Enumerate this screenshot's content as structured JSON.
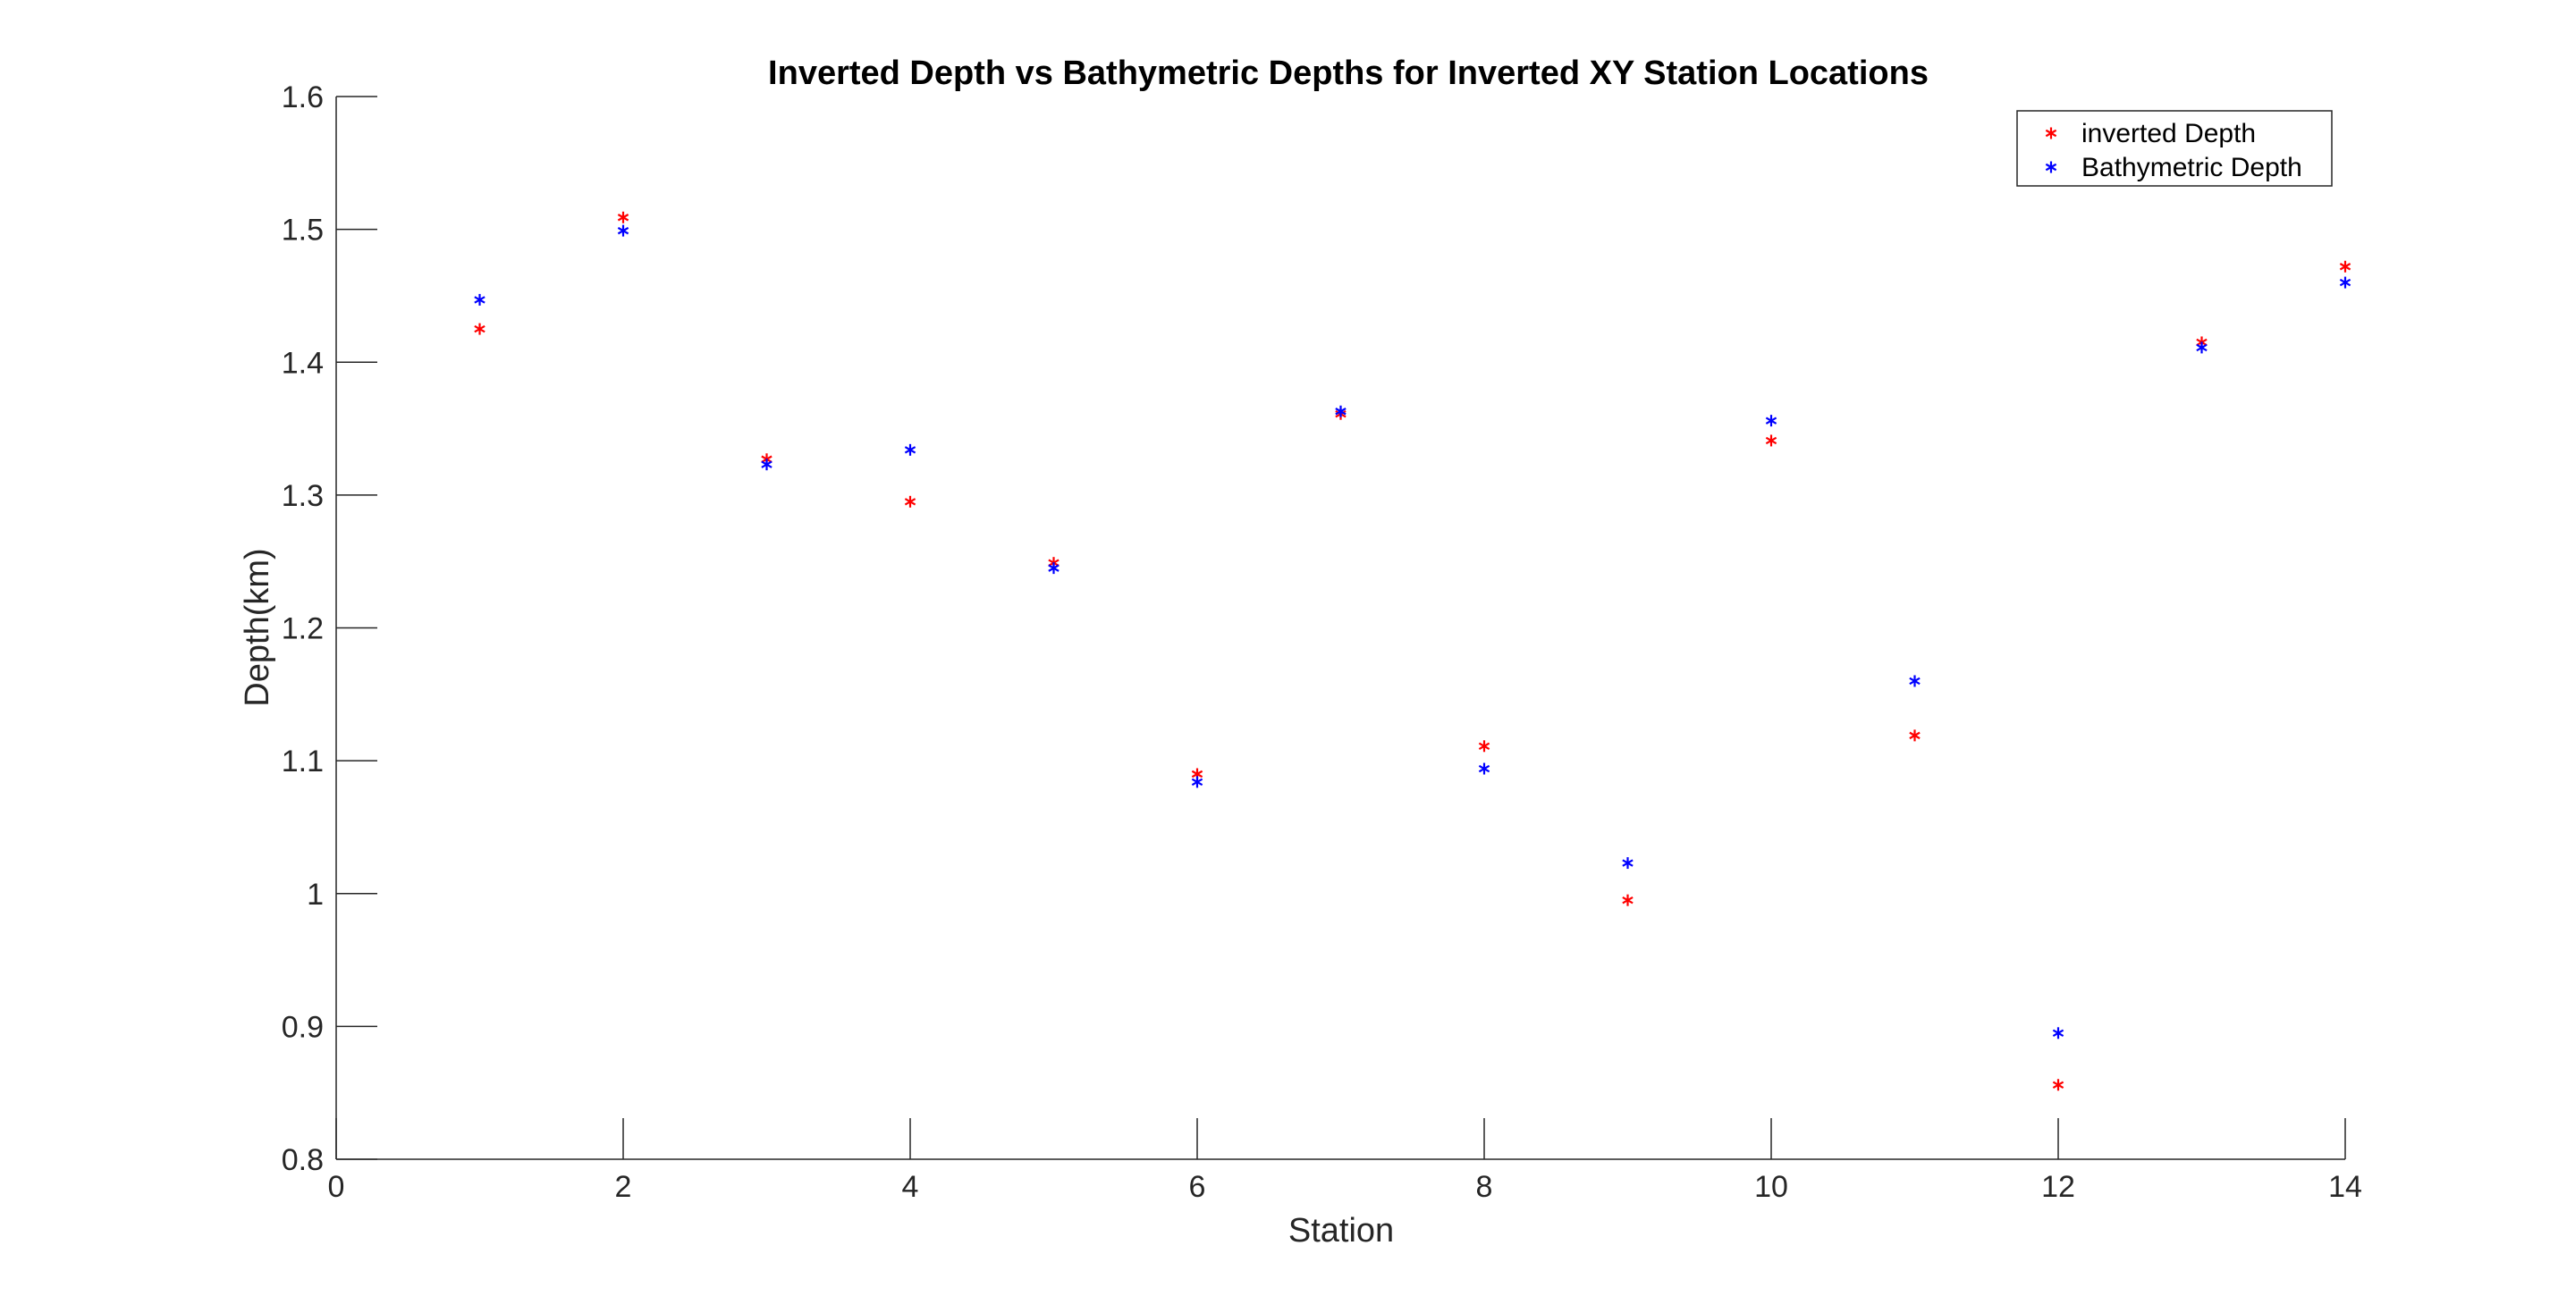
{
  "chart_data": {
    "type": "scatter",
    "title": "Inverted Depth vs Bathymetric Depths for Inverted XY Station Locations",
    "xlabel": "Station",
    "ylabel": "Depth(km)",
    "xlim": [
      0,
      14
    ],
    "ylim": [
      0.8,
      1.6
    ],
    "xticks": [
      0,
      2,
      4,
      6,
      8,
      10,
      12,
      14
    ],
    "xtick_labels": [
      "0",
      "2",
      "4",
      "6",
      "8",
      "10",
      "12",
      "14"
    ],
    "yticks": [
      0.8,
      0.9,
      1.0,
      1.1,
      1.2,
      1.3,
      1.4,
      1.5,
      1.6
    ],
    "ytick_labels": [
      "0.8",
      "0.9",
      "1",
      "1.1",
      "1.2",
      "1.3",
      "1.4",
      "1.5",
      "1.6"
    ],
    "grid": false,
    "legend_position": "top-right",
    "marker": "asterisk",
    "series": [
      {
        "name": "inverted Depth",
        "color": "#ff0000",
        "x": [
          1,
          2,
          3,
          4,
          5,
          6,
          7,
          8,
          9,
          10,
          11,
          12,
          13,
          14
        ],
        "y": [
          1.425,
          1.509,
          1.327,
          1.295,
          1.249,
          1.09,
          1.361,
          1.111,
          0.995,
          1.341,
          1.119,
          0.856,
          1.415,
          1.472
        ]
      },
      {
        "name": "Bathymetric Depth",
        "color": "#0000ff",
        "x": [
          1,
          2,
          3,
          4,
          5,
          6,
          7,
          8,
          9,
          10,
          11,
          12,
          13,
          14
        ],
        "y": [
          1.447,
          1.499,
          1.323,
          1.334,
          1.245,
          1.084,
          1.363,
          1.094,
          1.023,
          1.356,
          1.16,
          0.895,
          1.411,
          1.46
        ]
      }
    ]
  }
}
